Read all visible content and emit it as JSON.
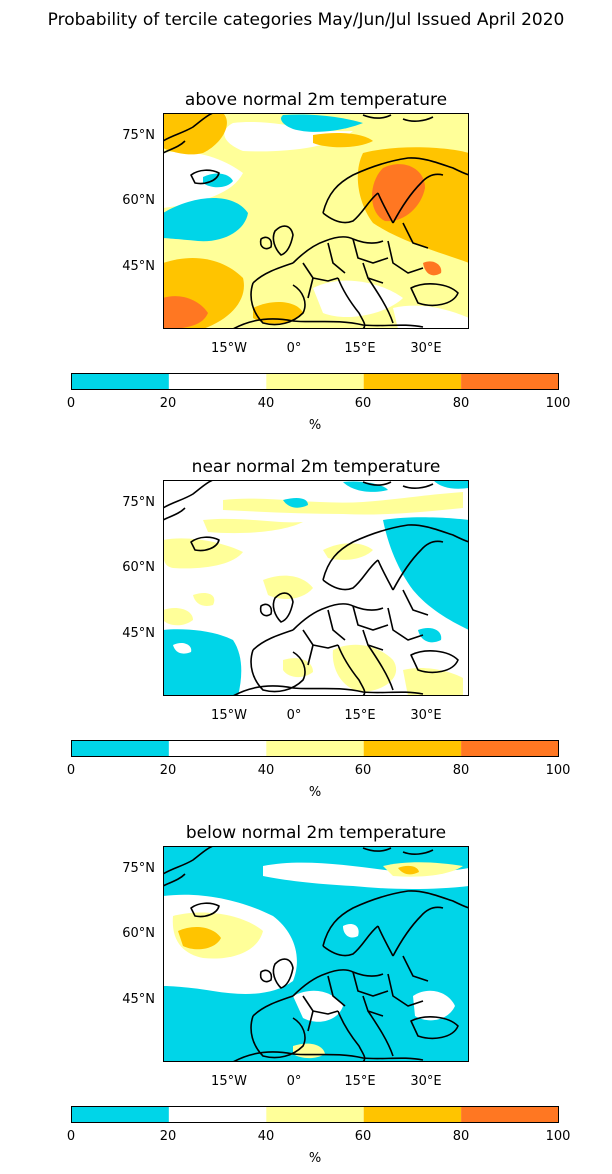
{
  "figure_title": "Probability of tercile categories May/Jun/Jul Issued April 2020",
  "colors": {
    "cyan": "#00d5e8",
    "white": "#ffffff",
    "light_yellow": "#ffff99",
    "gold": "#ffc400",
    "orange": "#ff7722",
    "coast": "#000000"
  },
  "lat_ticks": [
    "75°N",
    "60°N",
    "45°N"
  ],
  "lon_ticks": [
    "15°W",
    "0°",
    "15°E",
    "30°E"
  ],
  "colorbar": {
    "ticks": [
      "0",
      "20",
      "40",
      "60",
      "80",
      "100"
    ],
    "unit": "%",
    "bins": [
      {
        "from": 0,
        "to": 20,
        "color": "#00d5e8"
      },
      {
        "from": 20,
        "to": 40,
        "color": "#ffffff"
      },
      {
        "from": 40,
        "to": 60,
        "color": "#ffff99"
      },
      {
        "from": 60,
        "to": 80,
        "color": "#ffc400"
      },
      {
        "from": 80,
        "to": 100,
        "color": "#ff7722"
      }
    ]
  },
  "panels": [
    {
      "key": "above",
      "title": "above normal 2m temperature"
    },
    {
      "key": "near",
      "title": "near normal 2m temperature"
    },
    {
      "key": "below",
      "title": "below normal 2m temperature"
    }
  ]
}
